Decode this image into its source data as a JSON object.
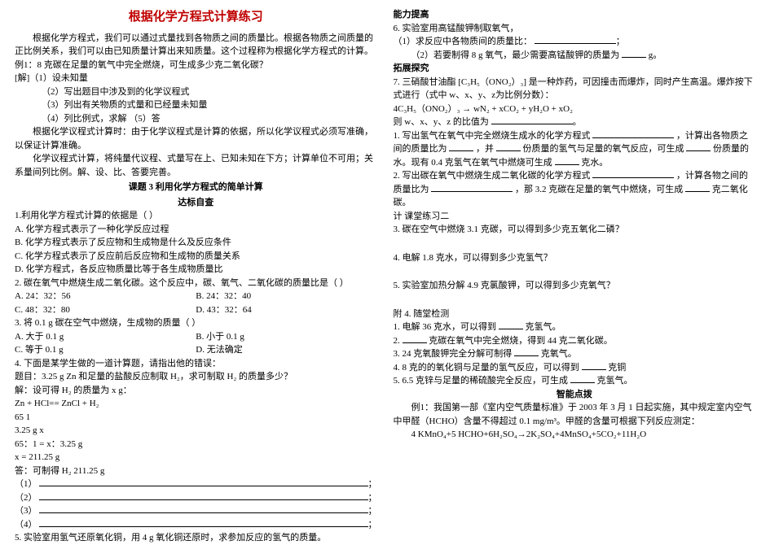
{
  "left": {
    "title": "根据化学方程式计算练习",
    "intro1": "根据化学方程式，我们可以通过式量找到各物质之间的质量比。根据各物质之间质量的正比例关系，我们可以由已知质量计算出来知质量。这个过程称为根据化学方程式的计算。",
    "example_label": "例1：8 克碳在足量的氧气中完全燃烧，可生成多少克二氧化碳？",
    "solve_label": "[解]（1）设未知量",
    "step2": "（2）写出题目中涉及到的化学议程式",
    "step3": "（3）列出有关物质的式量和已经量未知量",
    "step4": "（4）列比例式，求解    （5）答",
    "note1": "根据化学议程式计算时：由于化学议程式是计算的依据，所以化学议程式必须写准确，以保证计算准确。",
    "note2": "化学议程式计算，将纯量代议程、式量写在上、已知未知在下方；计算单位不可用；关系量间列比例。解、设、比、答要完善。",
    "lesson_title": "课题 3      利用化学方程式的简单计算",
    "lesson_sub": "达标自查",
    "q1": "1.利用化学方程式计算的依据是（  ）",
    "q1a": "A. 化学方程式表示了一种化学反应过程",
    "q1b": "B. 化学方程式表示了反应物和生成物是什么及反应条件",
    "q1c": "C. 化学方程式表示了反应前后反应物和生成物的质量关系",
    "q1d": "D. 化学方程式，各反应物质量比等于各生成物质量比",
    "q2": "2. 碳在氧气中燃烧生成二氧化碳。这个反应中，碳、氧气、二氧化碳的质量比是（  ）",
    "q2a": "A. 24：32：56",
    "q2b": "B. 24：32：40",
    "q2c": "C. 48：32：80",
    "q2d": "D. 43：32：64",
    "q3": "3. 将 0.1 g 碳在空气中燃烧，生成物的质量（    ）",
    "q3a": "A. 大于 0.1 g",
    "q3b": "B. 小于 0.1 g",
    "q3c": "C. 等于 0.1 g",
    "q3d": "D. 无法确定",
    "q4": "4. 下面是某学生做的一道计算题，请指出他的错误：",
    "q4line": "题目：3.25 g Zn 和足量的盐酸反应制取 H₂，求可制取 H₂ 的质量多少？",
    "q4solve": "解：设可得 H₂ 的质量为 x  g：",
    "q4eq": "Zn + HCl== ZnCl + H₂",
    "q4n1": "65                    1",
    "q4n2": "3.25 g               x",
    "q4prop": "65：1 = x：3.25 g",
    "q4x": "x =   211.25 g",
    "q4ans": "答：可制得 H₂ 211.25 g",
    "blank_label1": "（1）",
    "blank_label2": "（2）",
    "blank_label3": "（3）",
    "blank_label4": "（4）",
    "q5": "5. 实验室用氢气还原氧化铜，用 4 g 氧化铜还原时，求参加反应的氢气的质量。"
  },
  "right": {
    "head1": "能力提高",
    "r6": "6. 实验室用高锰酸钾制取氧气，",
    "r6a": "（1）求反应中各物质间的质量比：",
    "r6b_pre": "（2）若要制得 8 g 氧气，最少需要高锰酸钾的质量为",
    "r6b_suf": "g。",
    "head2": "拓展探究",
    "r7": "7. 三硝酸甘油酯 [C₃H₅（ONO₂）₃] 是一种炸药，可因撞击而爆炸，同时产生高温。爆炸按下式进行（式中 w、x、y、z为比例分数）：",
    "r7eq": "4C₃H₅（ONO₂）₃ → wN₂ + xCO₂ + yH₂O + xO₂",
    "r7ask": "则 w、x、y、z 的比值为",
    "r8a_pre": "1. 写出氢气在氧气中完全燃烧生成水的化学方程式",
    "r8a_mid": "，计算出各物质之间的质量比为",
    "r8a_fill1": "，并",
    "r8a_fill2": "份质量的氢气与足量的氧气反应，可生成",
    "r8a_suf": "份质量的水。现有 0.4 克氢气在氧气中燃烧可生成",
    "r8a_end": "克水。",
    "r8b_pre": "2. 写出碳在氧气中燃烧生成二氧化碳的化学方程式",
    "r8b_mid": "，计算各物之间的质量比为",
    "r8b_fill": "，那 3.2 克碳在足量的氧气中燃烧，可生成",
    "r8b_end": "克二氧化碳。",
    "ex2": "计 课堂练习二",
    "r3": "3. 碳在空气中燃烧  3.1 克碳，可以得到多少克五氧化二磷？",
    "r4": "4. 电解 1.8 克水，可以得到多少克氢气？",
    "r5": "5. 实验室加热分解 4.9 克氯酸钾，可以得到多少克氧气？",
    "att": "附 4. 随堂检测",
    "a1_pre": "1. 电解 36 克水，可以得到",
    "a1_suf": "克氢气。",
    "a2_pre": "2.",
    "a2_suf": "克碳在氧气中完全燃烧，得到 44 克二氧化碳。",
    "a3_pre": "3. 24 克氧酸钾完全分解可制得",
    "a3_suf": "克氧气。",
    "a4_pre": "4. 8 克的的氧化铜与足量的氢气反应，可以得到",
    "a4_suf": "克铜",
    "a5_pre": "5. 6.5 克锌与足量的稀硫酸完全反应，可生成",
    "a5_suf": "克氢气。",
    "smart": "智能点拨",
    "ex_b": "例1：我国第一部《室内空气质量标准》于 2003 年 3 月 1 日起实施，其中规定室内空气中甲醛（HCHO）含量不得超过 0.1 mg/m³。甲醛的含量可根据下列反应测定：",
    "ex_eq": "4 KMnO₄+5 HCHO+6H₂SO₄→2K₂SO₄+4MnSO₄+5CO₂+11H₂O"
  }
}
